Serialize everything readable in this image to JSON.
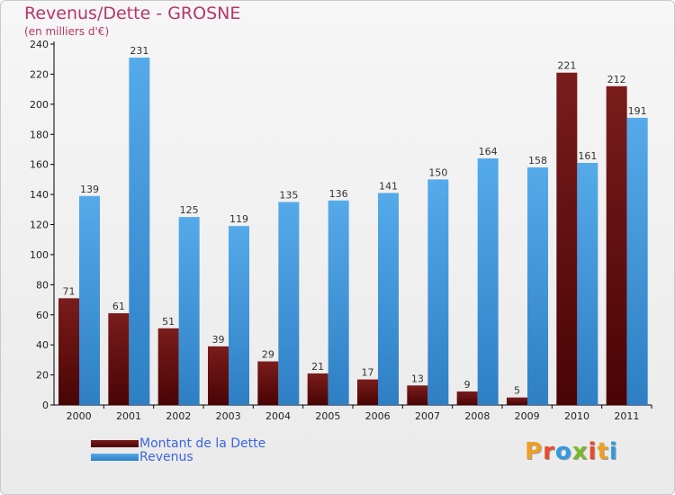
{
  "title": "Revenus/Dette - GROSNE",
  "subtitle": "(en milliers d'€)",
  "legend": {
    "debt_label": "Montant de la Dette",
    "revenue_label": "Revenus"
  },
  "logo": {
    "text": "Proxiti"
  },
  "colors": {
    "title": "#b5366a",
    "debt": "#7a1c1c",
    "debt_dark": "#4a0404",
    "revenue": "#55aaea",
    "revenue_dark": "#2e7fc4",
    "legend_text": "#3c64e0"
  },
  "chart_data": {
    "type": "bar",
    "title": "Revenus/Dette - GROSNE",
    "ylabel": "(en milliers d'€)",
    "xlabel": "",
    "categories": [
      "2000",
      "2001",
      "2002",
      "2003",
      "2004",
      "2005",
      "2006",
      "2007",
      "2008",
      "2009",
      "2010",
      "2011"
    ],
    "series": [
      {
        "name": "Montant de la Dette",
        "values": [
          71,
          61,
          51,
          39,
          29,
          21,
          17,
          13,
          9,
          5,
          221,
          212
        ]
      },
      {
        "name": "Revenus",
        "values": [
          139,
          231,
          125,
          119,
          135,
          136,
          141,
          150,
          164,
          158,
          161,
          191
        ]
      }
    ],
    "ylim": [
      0,
      240
    ],
    "yticks": [
      0,
      20,
      40,
      60,
      80,
      100,
      120,
      140,
      160,
      180,
      200,
      220,
      240
    ],
    "grid": false,
    "legend_position": "bottom-left"
  }
}
